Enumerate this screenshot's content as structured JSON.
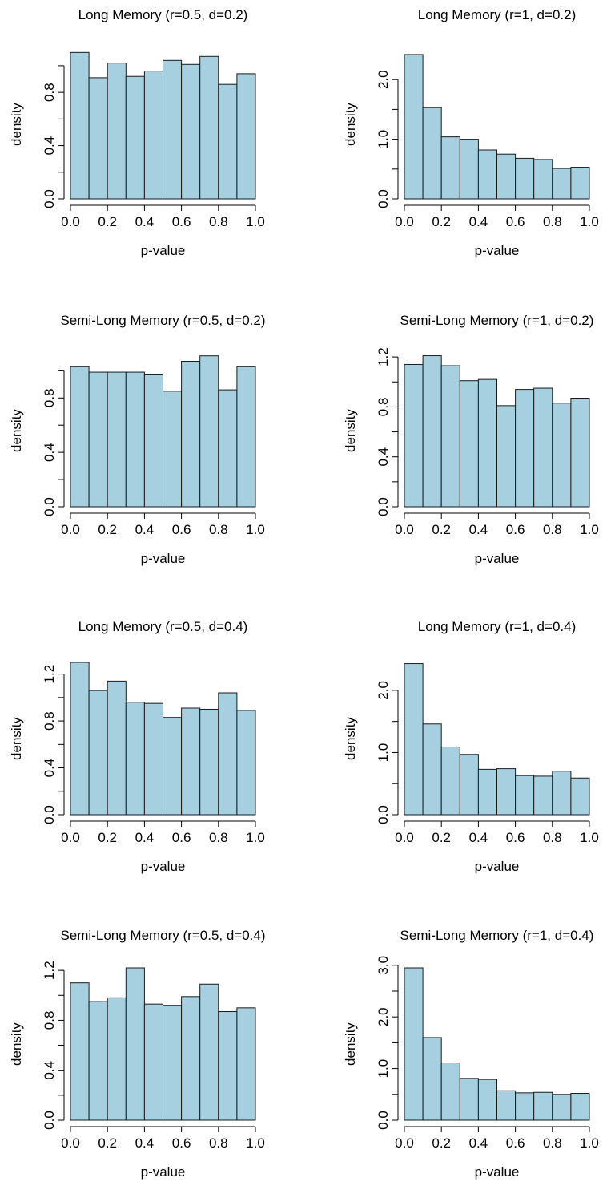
{
  "chart_data": [
    {
      "type": "bar",
      "title": "Long Memory (r=0.5, d=0.2)",
      "xlabel": "p-value",
      "ylabel": "density",
      "xlim": [
        0,
        1
      ],
      "ylim": [
        0,
        1.12
      ],
      "xticks": [
        "0.0",
        "0.2",
        "0.4",
        "0.6",
        "0.8",
        "1.0"
      ],
      "xtick_values": [
        0,
        0.2,
        0.4,
        0.6,
        0.8,
        1.0
      ],
      "yticks": [
        "0.0",
        "0.4",
        "0.8"
      ],
      "ytick_values": [
        0,
        0.4,
        0.8
      ],
      "yminor_values": [
        0.2,
        0.6,
        1.0
      ],
      "bin_edges": [
        0,
        0.1,
        0.2,
        0.3,
        0.4,
        0.5,
        0.6,
        0.7,
        0.8,
        0.9,
        1.0
      ],
      "values": [
        1.1,
        0.91,
        1.02,
        0.92,
        0.96,
        1.04,
        1.01,
        1.07,
        0.86,
        0.94
      ]
    },
    {
      "type": "bar",
      "title": "Long Memory (r=1, d=0.2)",
      "xlabel": "p-value",
      "ylabel": "density",
      "xlim": [
        0,
        1
      ],
      "ylim": [
        0,
        2.5
      ],
      "xticks": [
        "0.0",
        "0.2",
        "0.4",
        "0.6",
        "0.8",
        "1.0"
      ],
      "xtick_values": [
        0,
        0.2,
        0.4,
        0.6,
        0.8,
        1.0
      ],
      "yticks": [
        "0.0",
        "1.0",
        "2.0"
      ],
      "ytick_values": [
        0,
        1.0,
        2.0
      ],
      "yminor_values": [
        0.5,
        1.5
      ],
      "bin_edges": [
        0,
        0.1,
        0.2,
        0.3,
        0.4,
        0.5,
        0.6,
        0.7,
        0.8,
        0.9,
        1.0
      ],
      "values": [
        2.42,
        1.53,
        1.04,
        1.0,
        0.82,
        0.75,
        0.68,
        0.66,
        0.51,
        0.53
      ]
    },
    {
      "type": "bar",
      "title": "Semi-Long Memory (r=0.5, d=0.2)",
      "xlabel": "p-value",
      "ylabel": "density",
      "xlim": [
        0,
        1
      ],
      "ylim": [
        0,
        1.12
      ],
      "xticks": [
        "0.0",
        "0.2",
        "0.4",
        "0.6",
        "0.8",
        "1.0"
      ],
      "xtick_values": [
        0,
        0.2,
        0.4,
        0.6,
        0.8,
        1.0
      ],
      "yticks": [
        "0.0",
        "0.4",
        "0.8"
      ],
      "ytick_values": [
        0,
        0.4,
        0.8
      ],
      "yminor_values": [
        0.2,
        0.6,
        1.0
      ],
      "bin_edges": [
        0,
        0.1,
        0.2,
        0.3,
        0.4,
        0.5,
        0.6,
        0.7,
        0.8,
        0.9,
        1.0
      ],
      "values": [
        1.03,
        0.99,
        0.99,
        0.99,
        0.97,
        0.85,
        1.07,
        1.11,
        0.86,
        1.03
      ]
    },
    {
      "type": "bar",
      "title": "Semi-Long Memory (r=1, d=0.2)",
      "xlabel": "p-value",
      "ylabel": "density",
      "xlim": [
        0,
        1
      ],
      "ylim": [
        0,
        1.22
      ],
      "xticks": [
        "0.0",
        "0.2",
        "0.4",
        "0.6",
        "0.8",
        "1.0"
      ],
      "xtick_values": [
        0,
        0.2,
        0.4,
        0.6,
        0.8,
        1.0
      ],
      "yticks": [
        "0.0",
        "0.4",
        "0.8",
        "1.2"
      ],
      "ytick_values": [
        0,
        0.4,
        0.8,
        1.2
      ],
      "yminor_values": [
        0.2,
        0.6,
        1.0
      ],
      "bin_edges": [
        0,
        0.1,
        0.2,
        0.3,
        0.4,
        0.5,
        0.6,
        0.7,
        0.8,
        0.9,
        1.0
      ],
      "values": [
        1.14,
        1.21,
        1.13,
        1.01,
        1.02,
        0.81,
        0.94,
        0.95,
        0.83,
        0.87
      ]
    },
    {
      "type": "bar",
      "title": "Long Memory (r=0.5, d=0.4)",
      "xlabel": "p-value",
      "ylabel": "density",
      "xlim": [
        0,
        1
      ],
      "ylim": [
        0,
        1.3
      ],
      "xticks": [
        "0.0",
        "0.2",
        "0.4",
        "0.6",
        "0.8",
        "1.0"
      ],
      "xtick_values": [
        0,
        0.2,
        0.4,
        0.6,
        0.8,
        1.0
      ],
      "yticks": [
        "0.0",
        "0.4",
        "0.8",
        "1.2"
      ],
      "ytick_values": [
        0,
        0.4,
        0.8,
        1.2
      ],
      "yminor_values": [
        0.2,
        0.6,
        1.0
      ],
      "bin_edges": [
        0,
        0.1,
        0.2,
        0.3,
        0.4,
        0.5,
        0.6,
        0.7,
        0.8,
        0.9,
        1.0
      ],
      "values": [
        1.3,
        1.06,
        1.14,
        0.96,
        0.95,
        0.83,
        0.91,
        0.9,
        1.04,
        0.89
      ]
    },
    {
      "type": "bar",
      "title": "Long Memory (r=1, d=0.4)",
      "xlabel": "p-value",
      "ylabel": "density",
      "xlim": [
        0,
        1
      ],
      "ylim": [
        0,
        2.45
      ],
      "xticks": [
        "0.0",
        "0.2",
        "0.4",
        "0.6",
        "0.8",
        "1.0"
      ],
      "xtick_values": [
        0,
        0.2,
        0.4,
        0.6,
        0.8,
        1.0
      ],
      "yticks": [
        "0.0",
        "1.0",
        "2.0"
      ],
      "ytick_values": [
        0,
        1.0,
        2.0
      ],
      "yminor_values": [
        0.5,
        1.5
      ],
      "bin_edges": [
        0,
        0.1,
        0.2,
        0.3,
        0.4,
        0.5,
        0.6,
        0.7,
        0.8,
        0.9,
        1.0
      ],
      "values": [
        2.43,
        1.46,
        1.09,
        0.97,
        0.73,
        0.74,
        0.63,
        0.62,
        0.7,
        0.59
      ]
    },
    {
      "type": "bar",
      "title": "Semi-Long Memory (r=0.5, d=0.4)",
      "xlabel": "p-value",
      "ylabel": "density",
      "xlim": [
        0,
        1
      ],
      "ylim": [
        0,
        1.22
      ],
      "xticks": [
        "0.0",
        "0.2",
        "0.4",
        "0.6",
        "0.8",
        "1.0"
      ],
      "xtick_values": [
        0,
        0.2,
        0.4,
        0.6,
        0.8,
        1.0
      ],
      "yticks": [
        "0.0",
        "0.4",
        "0.8",
        "1.2"
      ],
      "ytick_values": [
        0,
        0.4,
        0.8,
        1.2
      ],
      "yminor_values": [
        0.2,
        0.6,
        1.0
      ],
      "bin_edges": [
        0,
        0.1,
        0.2,
        0.3,
        0.4,
        0.5,
        0.6,
        0.7,
        0.8,
        0.9,
        1.0
      ],
      "values": [
        1.1,
        0.95,
        0.98,
        1.22,
        0.93,
        0.92,
        0.99,
        1.09,
        0.87,
        0.9
      ]
    },
    {
      "type": "bar",
      "title": "Semi-Long Memory (r=1, d=0.4)",
      "xlabel": "p-value",
      "ylabel": "density",
      "xlim": [
        0,
        1
      ],
      "ylim": [
        0,
        2.95
      ],
      "xticks": [
        "0.0",
        "0.2",
        "0.4",
        "0.6",
        "0.8",
        "1.0"
      ],
      "xtick_values": [
        0,
        0.2,
        0.4,
        0.6,
        0.8,
        1.0
      ],
      "yticks": [
        "0.0",
        "1.0",
        "2.0",
        "3.0"
      ],
      "ytick_values": [
        0,
        1.0,
        2.0,
        3.0
      ],
      "yminor_values": [
        0.5,
        1.5,
        2.5
      ],
      "bin_edges": [
        0,
        0.1,
        0.2,
        0.3,
        0.4,
        0.5,
        0.6,
        0.7,
        0.8,
        0.9,
        1.0
      ],
      "values": [
        2.95,
        1.6,
        1.11,
        0.81,
        0.79,
        0.57,
        0.53,
        0.54,
        0.5,
        0.52
      ]
    }
  ]
}
